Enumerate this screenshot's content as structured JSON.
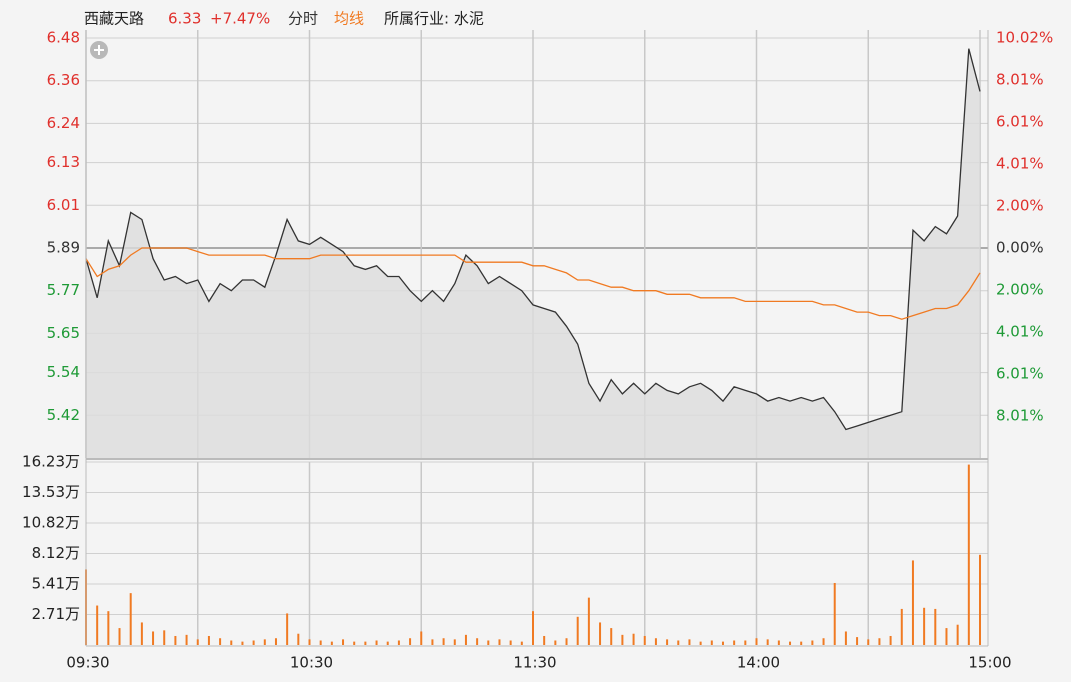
{
  "chart_data": [
    {
      "type": "line",
      "title": "西藏天路",
      "last": "6.33",
      "change": "+7.47%",
      "mode": "分时",
      "industry": "所属行业: 水泥",
      "up_color": "#e0302c",
      "down_color": "#1e9a36",
      "flat_color": "#333333",
      "baseline": 5.89,
      "x": [
        0,
        3,
        6,
        9,
        12,
        15,
        18,
        21,
        24,
        27,
        30,
        33,
        36,
        39,
        42,
        45,
        48,
        51,
        54,
        57,
        60,
        63,
        66,
        69,
        72,
        75,
        78,
        81,
        84,
        87,
        90,
        93,
        96,
        99,
        102,
        105,
        108,
        111,
        114,
        117,
        120,
        123,
        126,
        129,
        132,
        135,
        138,
        141,
        144,
        147,
        150,
        153,
        156,
        159,
        162,
        165,
        168,
        171,
        174,
        177,
        180,
        183,
        186,
        189,
        192,
        195,
        198,
        201,
        204,
        207,
        210,
        213,
        216,
        219,
        222,
        225,
        228,
        231,
        234,
        237,
        240
      ],
      "xlim": [
        0,
        240
      ],
      "xticks": [
        0,
        30,
        60,
        90,
        120,
        150,
        180,
        210,
        240
      ],
      "ylim": [
        5.3,
        6.48
      ],
      "yticks": [
        6.48,
        6.36,
        6.24,
        6.13,
        6.01,
        5.89,
        5.77,
        5.65,
        5.54,
        5.42
      ],
      "y2lim": [
        -10.02,
        10.02
      ],
      "y2ticks": [
        {
          "value": 10.02,
          "label": "10.02%"
        },
        {
          "value": 8.01,
          "label": "8.01%"
        },
        {
          "value": 6.01,
          "label": "6.01%"
        },
        {
          "value": 4.01,
          "label": "4.01%"
        },
        {
          "value": 2.0,
          "label": "2.00%"
        },
        {
          "value": 0,
          "label": "0.00%"
        },
        {
          "value": -2.0,
          "label": "2.00%"
        },
        {
          "value": -4.01,
          "label": "4.01%"
        },
        {
          "value": -6.01,
          "label": "6.01%"
        },
        {
          "value": -8.01,
          "label": "8.01%"
        }
      ],
      "series": [
        {
          "color": "#333333",
          "fill": "#dcdcdc",
          "values": [
            5.86,
            5.75,
            5.91,
            5.84,
            5.99,
            5.97,
            5.86,
            5.8,
            5.81,
            5.79,
            5.8,
            5.74,
            5.79,
            5.77,
            5.8,
            5.8,
            5.78,
            5.87,
            5.97,
            5.91,
            5.9,
            5.92,
            5.9,
            5.88,
            5.84,
            5.83,
            5.84,
            5.81,
            5.81,
            5.77,
            5.74,
            5.77,
            5.74,
            5.79,
            5.87,
            5.84,
            5.79,
            5.81,
            5.79,
            5.77,
            5.73,
            5.72,
            5.71,
            5.67,
            5.62,
            5.51,
            5.46,
            5.52,
            5.48,
            5.51,
            5.48,
            5.51,
            5.49,
            5.48,
            5.5,
            5.51,
            5.49,
            5.46,
            5.5,
            5.49,
            5.48,
            5.46,
            5.47,
            5.46,
            5.47,
            5.46,
            5.47,
            5.43,
            5.38,
            5.39,
            5.4,
            5.41,
            5.42,
            5.43,
            5.94,
            5.91,
            5.95,
            5.93,
            5.98,
            6.45,
            6.33
          ]
        },
        {
          "name": "均线",
          "color": "#f07a22",
          "values": [
            5.86,
            5.81,
            5.83,
            5.84,
            5.87,
            5.89,
            5.89,
            5.89,
            5.89,
            5.89,
            5.88,
            5.87,
            5.87,
            5.87,
            5.87,
            5.87,
            5.87,
            5.86,
            5.86,
            5.86,
            5.86,
            5.87,
            5.87,
            5.87,
            5.87,
            5.87,
            5.87,
            5.87,
            5.87,
            5.87,
            5.87,
            5.87,
            5.87,
            5.87,
            5.85,
            5.85,
            5.85,
            5.85,
            5.85,
            5.85,
            5.84,
            5.84,
            5.83,
            5.82,
            5.8,
            5.8,
            5.79,
            5.78,
            5.78,
            5.77,
            5.77,
            5.77,
            5.76,
            5.76,
            5.76,
            5.75,
            5.75,
            5.75,
            5.75,
            5.74,
            5.74,
            5.74,
            5.74,
            5.74,
            5.74,
            5.74,
            5.73,
            5.73,
            5.72,
            5.71,
            5.71,
            5.7,
            5.7,
            5.69,
            5.7,
            5.71,
            5.72,
            5.72,
            5.73,
            5.77,
            5.82
          ]
        }
      ]
    },
    {
      "type": "bar",
      "color": "#f07a22",
      "xlim": [
        0,
        240
      ],
      "xticks": [
        {
          "value": 0,
          "label": "09:30"
        },
        {
          "value": 60,
          "label": "10:30"
        },
        {
          "value": 120,
          "label": "11:30"
        },
        {
          "value": 180,
          "label": "14:00"
        },
        {
          "value": 240,
          "label": "15:00"
        }
      ],
      "xgrid": [
        30,
        90,
        150,
        210
      ],
      "ylim": [
        0,
        16.23
      ],
      "yticks": [
        {
          "value": 16.23,
          "label": "16.23万"
        },
        {
          "value": 13.53,
          "label": "13.53万"
        },
        {
          "value": 10.82,
          "label": "10.82万"
        },
        {
          "value": 8.12,
          "label": "8.12万"
        },
        {
          "value": 5.41,
          "label": "5.41万"
        },
        {
          "value": 2.71,
          "label": "2.71万"
        }
      ],
      "values": [
        6.7,
        3.5,
        3.0,
        1.5,
        4.6,
        2.0,
        1.2,
        1.3,
        0.8,
        0.9,
        0.5,
        0.8,
        0.6,
        0.4,
        0.3,
        0.4,
        0.5,
        0.6,
        2.8,
        1.0,
        0.5,
        0.4,
        0.3,
        0.5,
        0.3,
        0.3,
        0.4,
        0.3,
        0.4,
        0.6,
        1.2,
        0.5,
        0.6,
        0.5,
        0.9,
        0.6,
        0.4,
        0.5,
        0.4,
        0.3,
        3.0,
        0.8,
        0.4,
        0.6,
        2.5,
        4.2,
        2.0,
        1.5,
        0.9,
        1.0,
        0.8,
        0.6,
        0.5,
        0.4,
        0.5,
        0.3,
        0.4,
        0.3,
        0.4,
        0.4,
        0.6,
        0.5,
        0.4,
        0.3,
        0.3,
        0.4,
        0.6,
        5.5,
        1.2,
        0.7,
        0.5,
        0.6,
        0.8,
        3.2,
        7.5,
        3.3,
        3.2,
        1.5,
        1.8,
        16.0,
        8.0
      ]
    }
  ]
}
